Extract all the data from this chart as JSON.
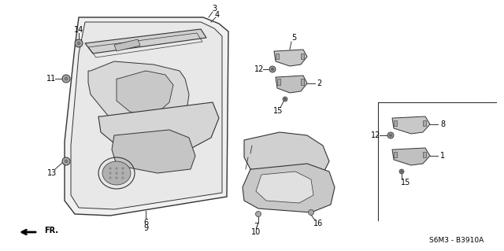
{
  "bg_color": "#ffffff",
  "line_color": "#333333",
  "diagram_code": "S6M3 - B3910A"
}
